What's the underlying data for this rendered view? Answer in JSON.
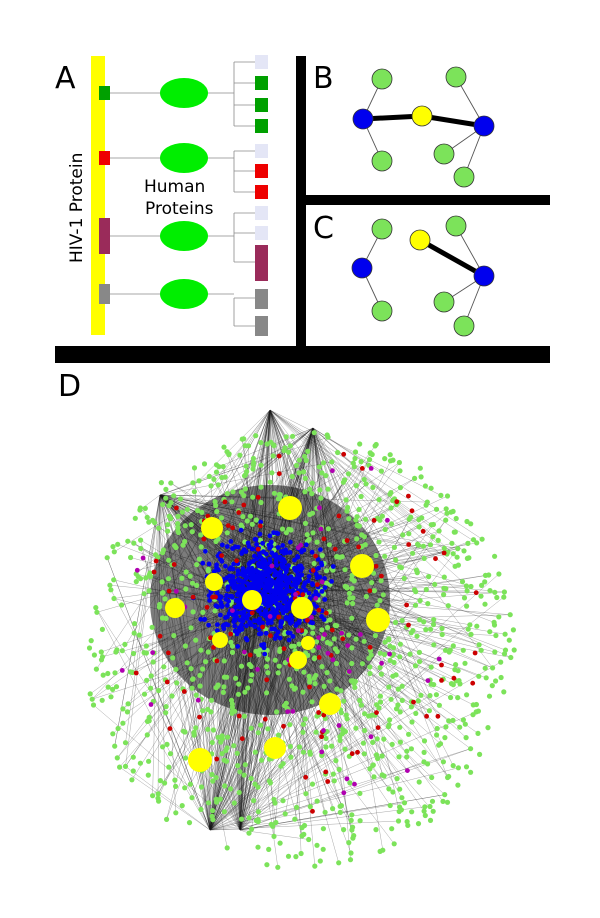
{
  "panels": {
    "a": {
      "label": "A",
      "protein_label": "HIV-1 Protein",
      "human_label_line1": "Human",
      "human_label_line2": "Proteins"
    },
    "b": {
      "label": "B"
    },
    "c": {
      "label": "C"
    },
    "d": {
      "label": "D"
    }
  },
  "colors": {
    "hiv_bar": "#ffff00",
    "human_protein": "#00ee00",
    "node_green": "#7ce35a",
    "node_yellow": "#ffff00",
    "node_blue": "#0000ee",
    "node_red": "#cc0000",
    "node_magenta": "#b000b0",
    "site_green": "#00a000",
    "site_red": "#ee0000",
    "site_maroon": "#9a2b5a",
    "site_gray": "#888888",
    "site_empty": "#e4e6f6",
    "divider": "#000000"
  }
}
